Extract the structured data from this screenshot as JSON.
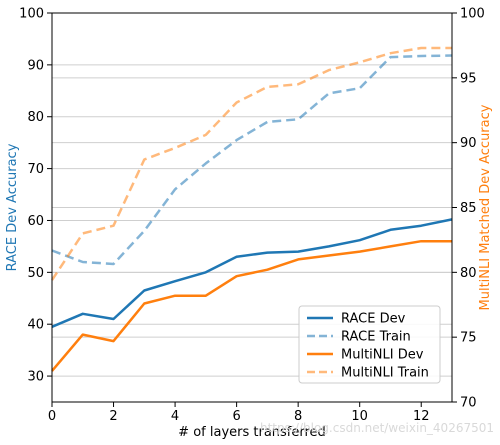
{
  "chart_data": {
    "type": "line",
    "x": [
      0,
      1,
      2,
      3,
      4,
      5,
      6,
      7,
      8,
      9,
      10,
      11,
      12,
      13
    ],
    "xlabel": "# of layers transferred",
    "xlim": [
      0,
      13
    ],
    "xticks": [
      0,
      2,
      4,
      6,
      8,
      10,
      12
    ],
    "left_axis": {
      "label": "RACE Dev Accuracy",
      "color": "#1f77b4",
      "ylim": [
        25,
        100
      ],
      "ticks": [
        30,
        40,
        50,
        60,
        70,
        80,
        90,
        100
      ]
    },
    "right_axis": {
      "label": "MultiNLI Matched Dev Accuracy",
      "color": "#ff7f0e",
      "ylim": [
        70,
        100
      ],
      "ticks": [
        70,
        75,
        80,
        85,
        90,
        95,
        100
      ]
    },
    "grid": "horizontal",
    "legend_position": "bottom-right",
    "series": [
      {
        "name": "RACE Dev",
        "axis": "left",
        "color": "#1f77b4",
        "style": "solid",
        "values": [
          39.5,
          42.0,
          41.0,
          46.5,
          48.3,
          50.0,
          53.0,
          53.8,
          54.0,
          55.0,
          56.2,
          58.2,
          59.0,
          60.2
        ]
      },
      {
        "name": "RACE Train",
        "axis": "left",
        "color": "#1f77b4",
        "style": "dashed",
        "values": [
          54.2,
          52.0,
          51.6,
          58.0,
          66.0,
          71.0,
          75.5,
          79.0,
          79.5,
          84.5,
          85.5,
          91.5,
          91.7,
          91.8
        ]
      },
      {
        "name": "MultiNLI Dev",
        "axis": "right",
        "color": "#ff7f0e",
        "style": "solid",
        "values": [
          72.4,
          75.2,
          74.7,
          77.6,
          78.2,
          78.2,
          79.7,
          80.2,
          81.0,
          81.3,
          81.6,
          82.0,
          82.4,
          82.4
        ]
      },
      {
        "name": "MultiNLI Train",
        "axis": "right",
        "color": "#ff7f0e",
        "style": "dashed",
        "values": [
          79.4,
          83.0,
          83.6,
          88.7,
          89.6,
          90.6,
          93.1,
          94.3,
          94.5,
          95.6,
          96.2,
          96.9,
          97.3,
          97.3
        ]
      }
    ]
  },
  "watermark": "https://blog.csdn.net/weixin_40267501"
}
